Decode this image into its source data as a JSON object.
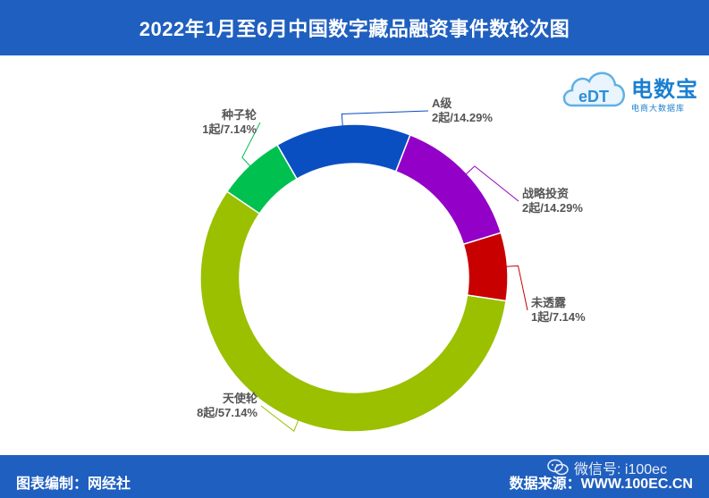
{
  "header": {
    "title": "2022年1月至6月中国数字藏品融资事件数轮次图"
  },
  "logo": {
    "mark_text": "eDT",
    "name": "电数宝",
    "sub": "电商大数据库"
  },
  "footer": {
    "left": "图表编制：网经社",
    "right": "数据来源：WWW.100EC.CN"
  },
  "watermark": {
    "text": "微信号: i100ec",
    "icon": "wechat-icon"
  },
  "colors": {
    "header_bg": "#1f5fbf",
    "footer_bg": "#1f5fbf"
  },
  "chart_data": {
    "type": "pie",
    "donut": true,
    "title": "",
    "slices": [
      {
        "name": "A级",
        "count_label": "2起/14.29%",
        "value": 2,
        "percent": 14.29,
        "color": "#0a4fc2"
      },
      {
        "name": "战略投资",
        "count_label": "2起/14.29%",
        "value": 2,
        "percent": 14.29,
        "color": "#9300c7"
      },
      {
        "name": "未透露",
        "count_label": "1起/7.14%",
        "value": 1,
        "percent": 7.14,
        "color": "#c80000"
      },
      {
        "name": "天使轮",
        "count_label": "8起/57.14%",
        "value": 8,
        "percent": 57.14,
        "color": "#9ac000"
      },
      {
        "name": "种子轮",
        "count_label": "1起/7.14%",
        "value": 1,
        "percent": 7.14,
        "color": "#00c050"
      }
    ]
  }
}
